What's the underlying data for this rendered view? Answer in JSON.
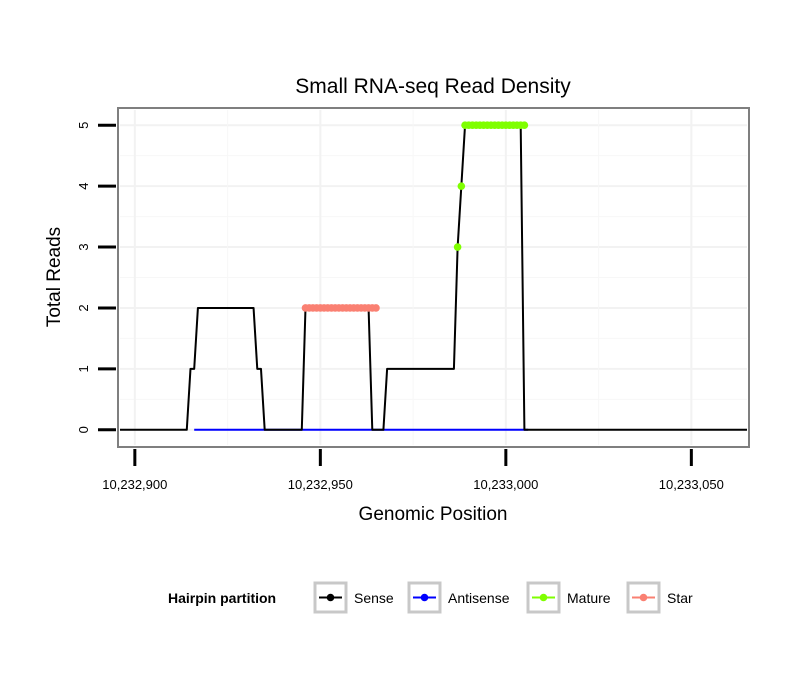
{
  "chart_data": {
    "type": "line",
    "title": "Small RNA-seq Read Density",
    "xlabel": "Genomic Position",
    "ylabel": "Total Reads",
    "xlim": [
      10232896,
      10233065
    ],
    "ylim": [
      -0.25,
      5.25
    ],
    "x_ticks": [
      10232900,
      10232950,
      10233000,
      10233050
    ],
    "x_tick_labels": [
      "10,232,900",
      "10,232,950",
      "10,233,000",
      "10,233,050"
    ],
    "y_ticks": [
      0,
      1,
      2,
      3,
      4,
      5
    ],
    "y_tick_labels": [
      "0",
      "1",
      "2",
      "3",
      "4",
      "5"
    ],
    "grid": true,
    "legend": {
      "title": "Hairpin partition",
      "position": "bottom",
      "entries": [
        {
          "name": "Sense",
          "color": "#000000"
        },
        {
          "name": "Antisense",
          "color": "#0000ff"
        },
        {
          "name": "Mature",
          "color": "#7fff00"
        },
        {
          "name": "Star",
          "color": "#fa8072"
        }
      ]
    },
    "series": [
      {
        "name": "Sense",
        "color": "#000000",
        "x": [
          10232896,
          10232914,
          10232915,
          10232916,
          10232917,
          10232932,
          10232933,
          10232934,
          10232935,
          10232945,
          10232946,
          10232947,
          10232951,
          10232963,
          10232964,
          10232965,
          10232967,
          10232968,
          10232970,
          10232975,
          10232986,
          10232987,
          10232988,
          10232989,
          10232990,
          10232991,
          10233001,
          10233004,
          10233005,
          10233065
        ],
        "y": [
          0,
          0,
          1,
          1,
          2,
          2,
          1,
          1,
          0,
          0,
          2,
          2,
          2,
          2,
          0,
          0,
          0,
          1,
          1,
          1,
          1,
          3,
          4,
          5,
          5,
          5,
          5,
          5,
          0,
          0
        ]
      },
      {
        "name": "Antisense",
        "color": "#0000ff",
        "x": [
          10232916,
          10233006
        ],
        "y": [
          0,
          0
        ]
      },
      {
        "name": "Mature",
        "color": "#7fff00",
        "x": [
          10232987,
          10232988,
          10232989,
          10232990,
          10232991,
          10232992,
          10232993,
          10232994,
          10232995,
          10232996,
          10232997,
          10232998,
          10232999,
          10233000,
          10233001,
          10233002,
          10233003,
          10233004,
          10233005
        ],
        "y": [
          3,
          4,
          5,
          5,
          5,
          5,
          5,
          5,
          5,
          5,
          5,
          5,
          5,
          5,
          5,
          5,
          5,
          5,
          5
        ]
      },
      {
        "name": "Star",
        "color": "#fa8072",
        "x": [
          10232946,
          10232947,
          10232948,
          10232949,
          10232950,
          10232951,
          10232952,
          10232953,
          10232954,
          10232955,
          10232956,
          10232957,
          10232958,
          10232959,
          10232960,
          10232961,
          10232962,
          10232963,
          10232964,
          10232965
        ],
        "y": [
          2,
          2,
          2,
          2,
          2,
          2,
          2,
          2,
          2,
          2,
          2,
          2,
          2,
          2,
          2,
          2,
          2,
          2,
          2,
          2
        ]
      }
    ]
  }
}
